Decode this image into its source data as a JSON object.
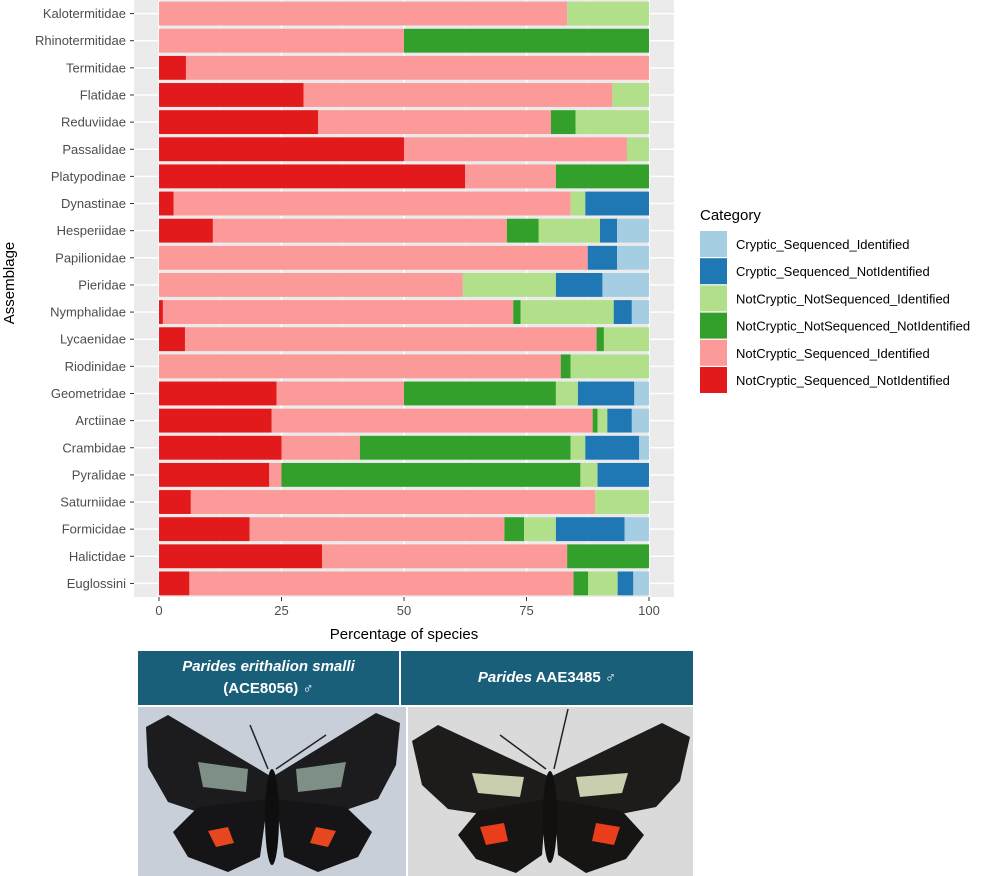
{
  "chart_data": {
    "type": "bar",
    "orientation": "horizontal",
    "stacked": true,
    "xlabel": "Percentage of species",
    "ylabel": "Assemblage",
    "xlim": [
      0,
      100
    ],
    "xticks": [
      0,
      25,
      50,
      75,
      100
    ],
    "grid": true,
    "legend": {
      "title": "Category",
      "position": "right"
    },
    "categories": [
      "Kalotermitidae",
      "Rhinotermitidae",
      "Termitidae",
      "Flatidae",
      "Reduviidae",
      "Passalidae",
      "Platypodinae",
      "Dynastinae",
      "Hesperiidae",
      "Papilionidae",
      "Pieridae",
      "Nymphalidae",
      "Lycaenidae",
      "Riodinidae",
      "Geometridae",
      "Arctiinae",
      "Crambidae",
      "Pyralidae",
      "Saturniidae",
      "Formicidae",
      "Halictidae",
      "Euglossini"
    ],
    "series": [
      {
        "name": "NotCryptic_Sequenced_NotIdentified",
        "color": "#e31a1c",
        "values": [
          0,
          0,
          5.5,
          29.5,
          32.5,
          50,
          62.5,
          3,
          11,
          0,
          0,
          0.8,
          5.3,
          0,
          24,
          23,
          25,
          22.5,
          6.5,
          18.5,
          33.3,
          6.2
        ]
      },
      {
        "name": "NotCryptic_Sequenced_Identified",
        "color": "#fb9a99",
        "values": [
          83.3,
          50,
          94.5,
          63,
          47.5,
          45.5,
          18.5,
          81,
          60,
          87.5,
          62,
          71.5,
          84,
          82,
          26,
          65.5,
          16,
          2.5,
          82.5,
          52,
          50,
          78.4
        ]
      },
      {
        "name": "NotCryptic_NotSequenced_NotIdentified",
        "color": "#33a02c",
        "values": [
          0,
          50,
          0,
          0,
          5,
          0,
          19,
          0,
          6.5,
          0,
          0,
          1.5,
          1.5,
          2,
          31,
          1,
          43,
          61,
          0,
          4,
          16.7,
          3
        ]
      },
      {
        "name": "NotCryptic_NotSequenced_Identified",
        "color": "#b2df8a",
        "values": [
          16.7,
          0,
          0,
          7.5,
          15,
          4.5,
          0,
          3,
          12.5,
          0,
          19,
          19,
          9.2,
          16,
          4.5,
          2,
          3,
          3.5,
          11,
          6.5,
          0,
          6
        ]
      },
      {
        "name": "Cryptic_Sequenced_NotIdentified",
        "color": "#1f78b4",
        "values": [
          0,
          0,
          0,
          0,
          0,
          0,
          0,
          13,
          3.5,
          6,
          9.5,
          3.7,
          0,
          0,
          11.5,
          5,
          11,
          10.5,
          0,
          14,
          0,
          3.2
        ]
      },
      {
        "name": "Cryptic_Sequenced_Identified",
        "color": "#a6cee3",
        "values": [
          0,
          0,
          0,
          0,
          0,
          0,
          0,
          0,
          6.5,
          6.5,
          9.5,
          3.5,
          0,
          0,
          3,
          3.5,
          2,
          0,
          0,
          5,
          0,
          3.2
        ]
      }
    ],
    "legend_order": [
      "Cryptic_Sequenced_Identified",
      "Cryptic_Sequenced_NotIdentified",
      "NotCryptic_NotSequenced_Identified",
      "NotCryptic_NotSequenced_NotIdentified",
      "NotCryptic_Sequenced_Identified",
      "NotCryptic_Sequenced_NotIdentified"
    ]
  },
  "photos": {
    "left": {
      "name_italic": "Parides erithalion smalli",
      "code": "(ACE8056) ♂"
    },
    "right": {
      "name_italic": "Parides",
      "code": " AAE3485 ♂"
    }
  }
}
